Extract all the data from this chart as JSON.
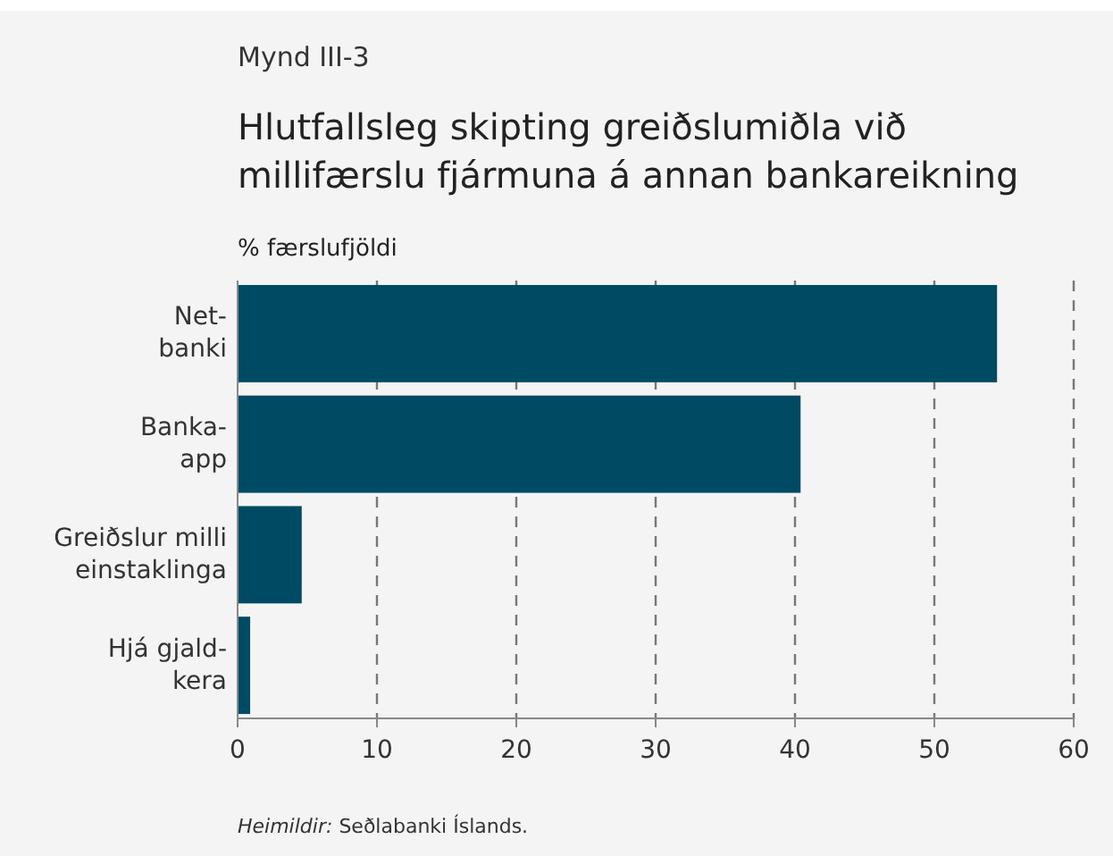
{
  "chart_data": {
    "type": "bar",
    "orientation": "horizontal",
    "title": "Hlutfallsleg skipting greiðslumiðla við millifærslu fjármuna á annan bankareikning",
    "xlabel": "% færslufjöldi",
    "annotations": [
      "Mynd III-3",
      "Heimildir: Seðlabanki Íslands."
    ],
    "categories": [
      "Net-banki",
      "Banka-app",
      "Greiðslur milli einstaklinga",
      "Hjá gjald-kera"
    ],
    "values": [
      54.5,
      40.4,
      4.6,
      0.9
    ],
    "color": "#004a64",
    "xlim": [
      0,
      60
    ],
    "xticks": [
      0,
      10,
      20,
      30,
      40,
      50,
      60
    ],
    "grid": "x"
  }
}
